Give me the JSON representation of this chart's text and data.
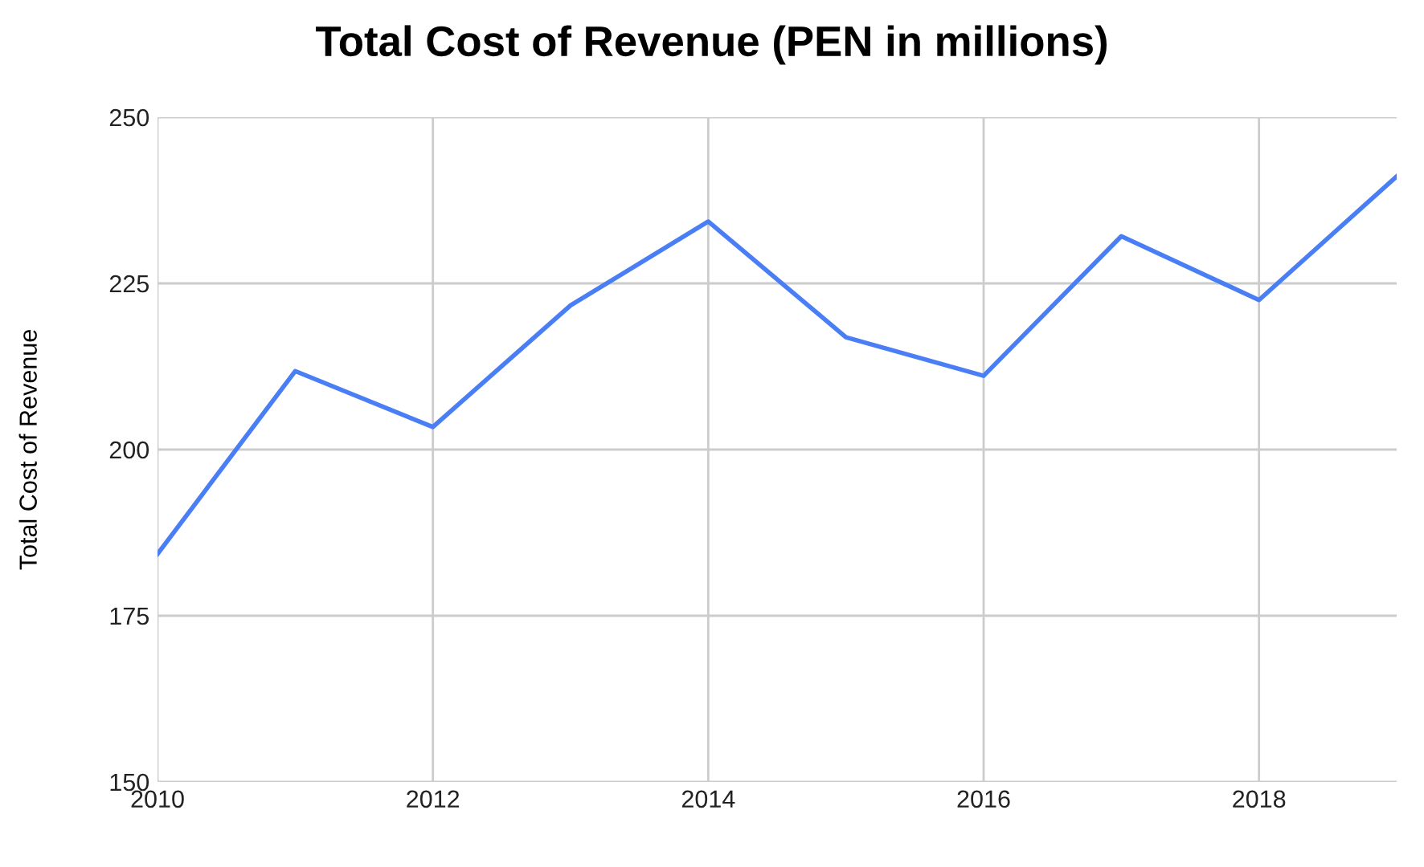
{
  "chart_data": {
    "type": "line",
    "title": "Total Cost of Revenue (PEN in millions)",
    "ylabel": "Total Cost of Revenue",
    "x": [
      2010,
      2011,
      2012,
      2013,
      2014,
      2015,
      2016,
      2017,
      2018,
      2019
    ],
    "series": [
      {
        "color": "#4a7ef5",
        "values": [
          184.3,
          211.8,
          203.4,
          221.7,
          234.3,
          216.9,
          211.1,
          232.1,
          222.5,
          241.1
        ]
      }
    ],
    "xlim": [
      2010,
      2019
    ],
    "xticks": [
      2010,
      2012,
      2014,
      2016,
      2018
    ],
    "ylim": [
      150,
      250
    ],
    "yticks": [
      150,
      175,
      200,
      225,
      250
    ],
    "grid": true,
    "marker": "none",
    "line_style": "solid"
  }
}
